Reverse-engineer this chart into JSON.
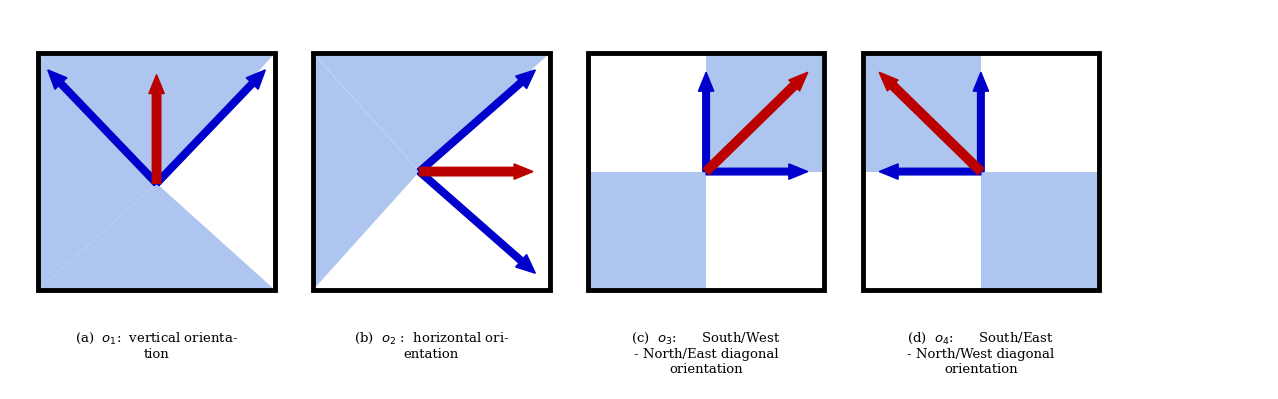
{
  "fig_width": 12.78,
  "fig_height": 3.99,
  "bg_color": "#ffffff",
  "blue_fill": "#aec6ef",
  "arrow_blue": "#0000cc",
  "arrow_red": "#bb0000",
  "box_color": "#000000",
  "captions": [
    "(a)  $o_1$:  vertical orienta-\ntion",
    "(b)  $o_2$ :  horizontal ori-\nentation",
    "(c)  $o_3$:      South/West\n- North/East diagonal\norientation",
    "(d)  $o_4$:      South/East\n- North/West diagonal\norientation"
  ]
}
